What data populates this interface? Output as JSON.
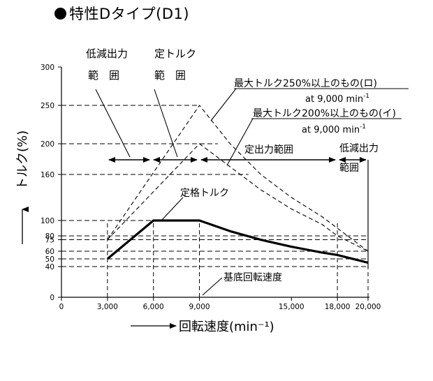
{
  "title": "特性Dタイプ(D1)",
  "chart_data": {
    "type": "line",
    "xlabel": "回転速度(min⁻¹)",
    "ylabel": "トルク(%)",
    "xlim": [
      0,
      20000
    ],
    "ylim": [
      0,
      300
    ],
    "x_ticks": [
      {
        "value": 0,
        "label": "0"
      },
      {
        "value": 3000,
        "label": "3,000"
      },
      {
        "value": 6000,
        "label": "6,000"
      },
      {
        "value": 9000,
        "label": "9,000"
      },
      {
        "value": 15000,
        "label": "15,000"
      },
      {
        "value": 18000,
        "label": "18,000"
      },
      {
        "value": 20000,
        "label": "20,000"
      }
    ],
    "y_ticks": [
      {
        "value": 0,
        "label": "0"
      },
      {
        "value": 40,
        "label": "40"
      },
      {
        "value": 50,
        "label": "50"
      },
      {
        "value": 60,
        "label": "60"
      },
      {
        "value": 75,
        "label": "75"
      },
      {
        "value": 80,
        "label": "80"
      },
      {
        "value": 100,
        "label": "100"
      },
      {
        "value": 160,
        "label": "160"
      },
      {
        "value": 200,
        "label": "200"
      },
      {
        "value": 250,
        "label": "250"
      },
      {
        "value": 300,
        "label": "300"
      }
    ],
    "series": [
      {
        "name": "定格トルク",
        "style": "solid",
        "x": [
          3000,
          6000,
          9000,
          11000,
          13000,
          15000,
          17000,
          18000,
          20000
        ],
        "y": [
          50,
          100,
          100,
          86.1,
          74.9,
          65.8,
          58.3,
          55.1,
          45
        ]
      },
      {
        "name": "最大トルク250%以上のもの(ロ)",
        "style": "dashed",
        "x": [
          3000,
          9000,
          11000,
          13000,
          15000,
          17000,
          18000,
          20000
        ],
        "y": [
          75,
          250,
          200,
          160,
          130,
          105,
          90,
          60
        ]
      },
      {
        "name": "最大トルク200%以上のもの(イ)",
        "style": "dashed",
        "x": [
          3000,
          9000,
          11000,
          13000,
          15000,
          17000,
          18000,
          20000
        ],
        "y": [
          75,
          200,
          170,
          140,
          115,
          95,
          80,
          60
        ]
      }
    ],
    "guides": {
      "vertical_x": [
        3000,
        6000,
        9000,
        18000,
        20000
      ],
      "horizontal_y": [
        40,
        50,
        60,
        75,
        80,
        100,
        160,
        200,
        250
      ]
    },
    "annotations": {
      "low_range_1": "低減出力",
      "low_range_2": "範　囲",
      "const_torque_1": "定トルク",
      "const_torque_2": "範　囲",
      "const_output": "定出力範囲",
      "low_range_r1": "低減出力",
      "low_range_r2": "範囲",
      "max250": "最大トルク250%以上のもの(ロ)",
      "max250_at": "at 9,000 min",
      "max200": "最大トルク200%以上のもの(イ)",
      "max200_at": "at 9,000 min",
      "rated": "定格トルク",
      "base_speed": "基底回転速度",
      "superscript": "-1"
    }
  }
}
